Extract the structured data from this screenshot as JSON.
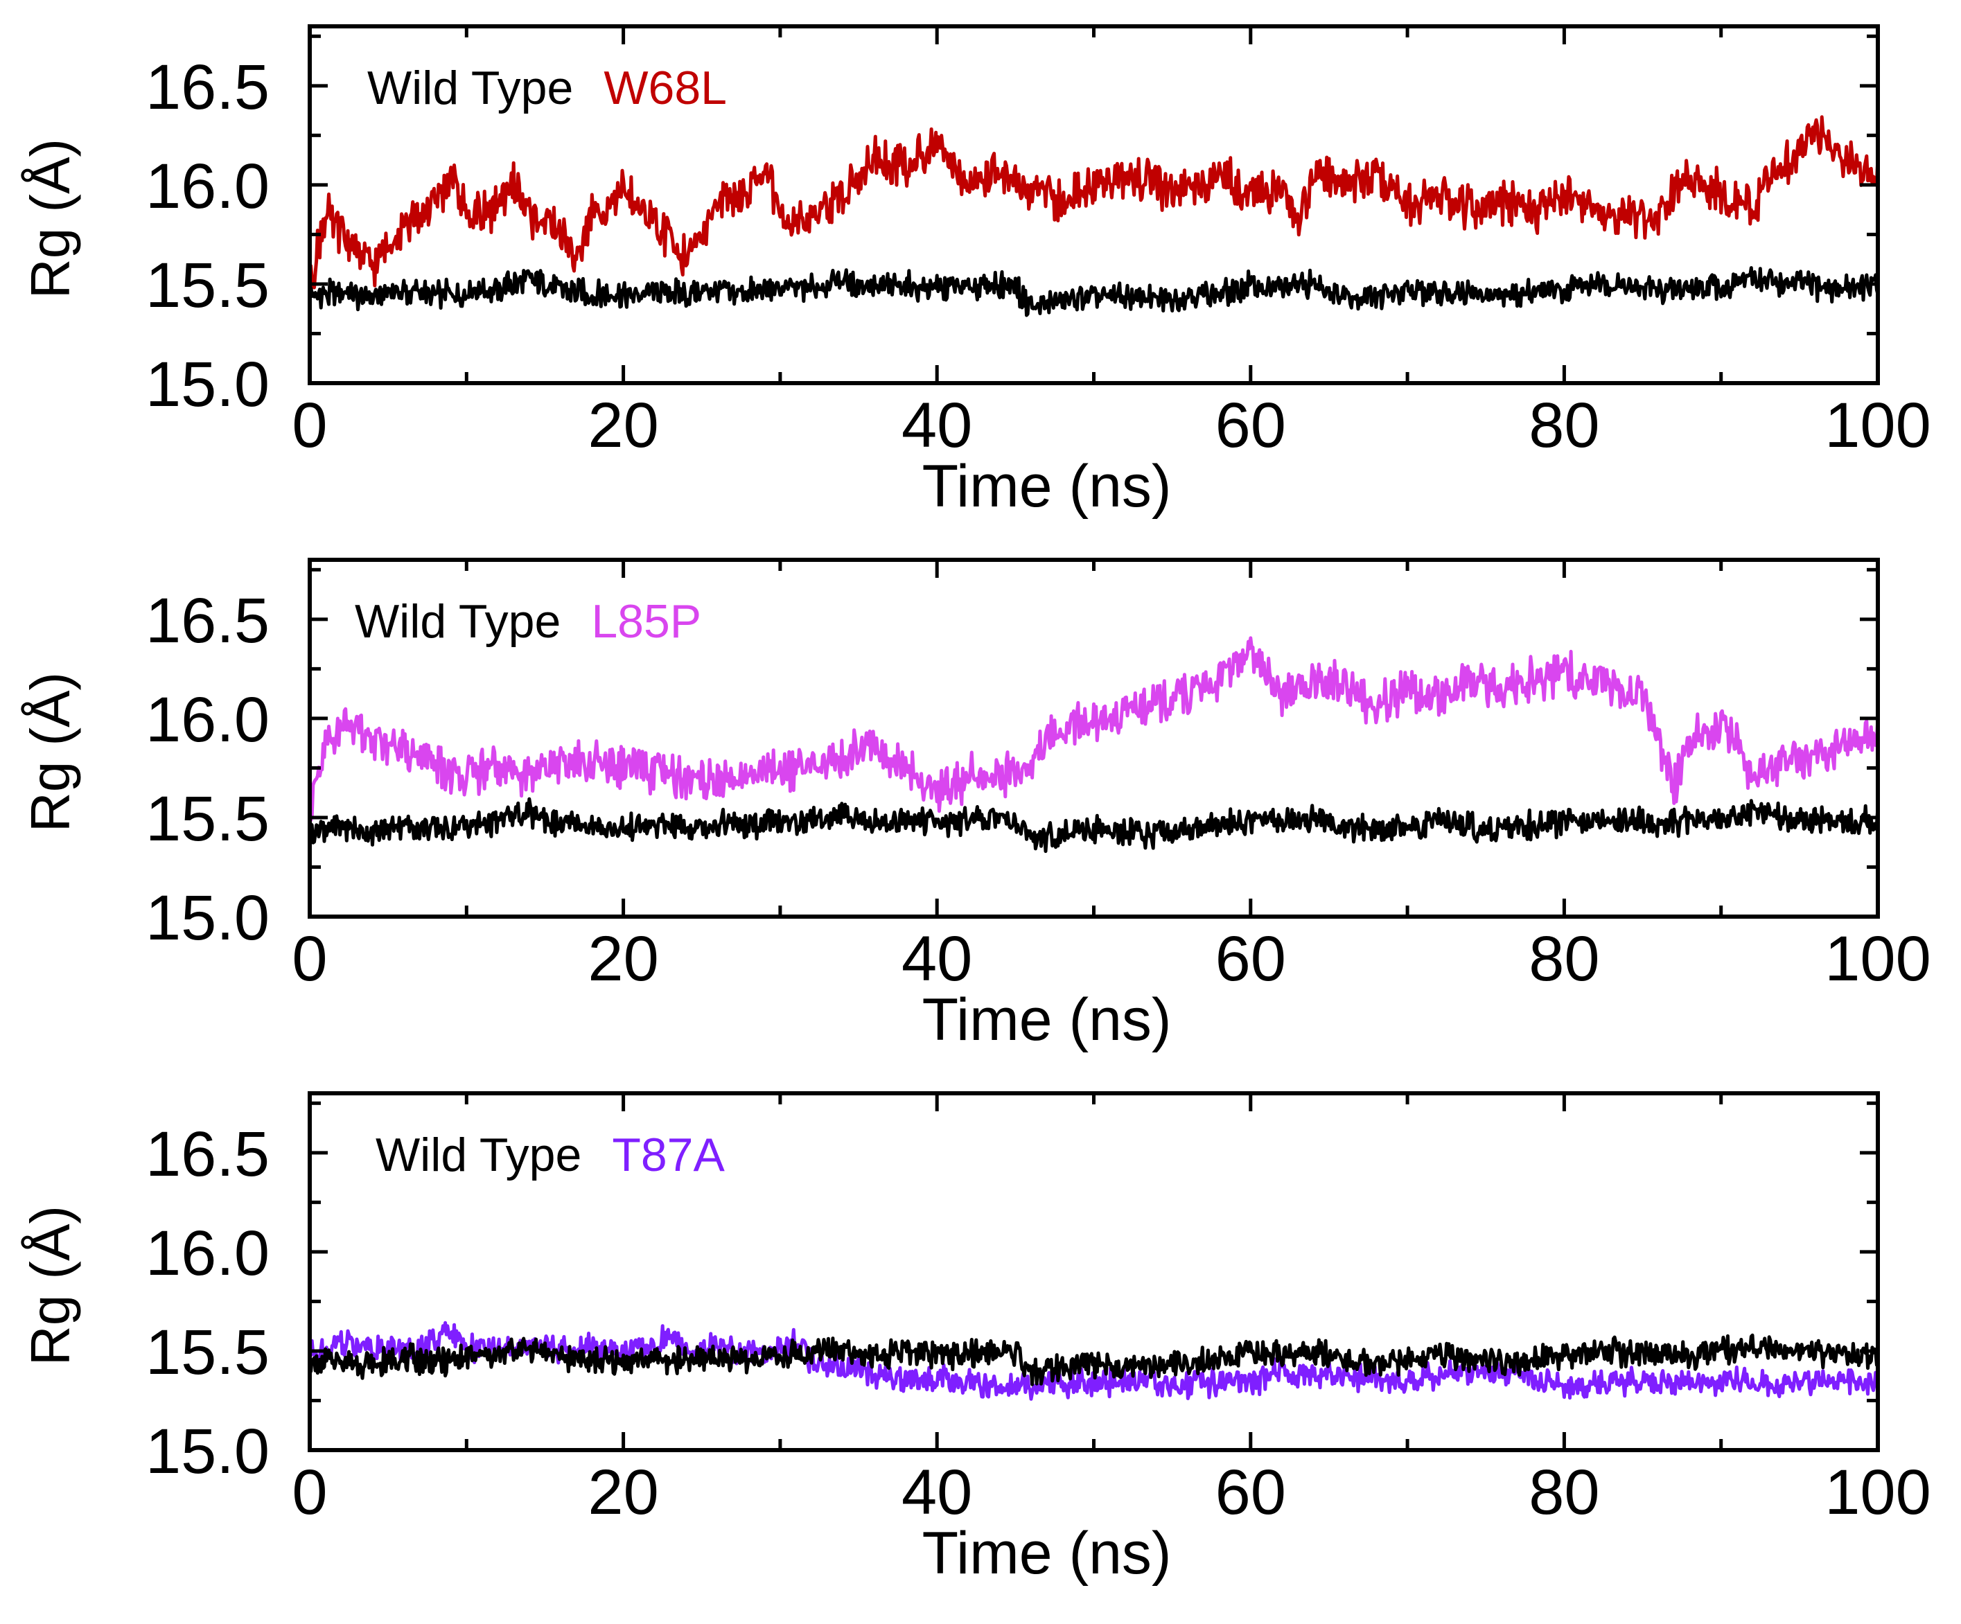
{
  "chart_data": [
    {
      "type": "line",
      "title": "",
      "xlabel": "Time (ns)",
      "ylabel": "Rg (Å)",
      "xlim": [
        0,
        100
      ],
      "ylim": [
        15.0,
        16.8
      ],
      "xticks": [
        "0",
        "20",
        "40",
        "60",
        "80",
        "100"
      ],
      "yticks": [
        "15.0",
        "15.5",
        "16.0",
        "16.5"
      ],
      "legend": [
        "Wild Type",
        "W68L"
      ],
      "series": [
        {
          "name": "Wild Type",
          "color": "#000000",
          "x": [
            0,
            2,
            4,
            6,
            8,
            10,
            12,
            14,
            16,
            18,
            20,
            22,
            24,
            26,
            28,
            30,
            32,
            34,
            36,
            38,
            40,
            42,
            44,
            45,
            46,
            48,
            50,
            52,
            54,
            56,
            58,
            60,
            62,
            64,
            66,
            68,
            70,
            72,
            74,
            76,
            78,
            80,
            82,
            84,
            86,
            88,
            90,
            92,
            94,
            96,
            98,
            100
          ],
          "values": [
            15.44,
            15.45,
            15.43,
            15.47,
            15.44,
            15.46,
            15.48,
            15.52,
            15.47,
            15.45,
            15.44,
            15.46,
            15.45,
            15.47,
            15.46,
            15.47,
            15.49,
            15.52,
            15.48,
            15.49,
            15.48,
            15.48,
            15.5,
            15.48,
            15.38,
            15.42,
            15.44,
            15.43,
            15.42,
            15.44,
            15.45,
            15.5,
            15.48,
            15.5,
            15.45,
            15.44,
            15.46,
            15.47,
            15.46,
            15.44,
            15.46,
            15.48,
            15.5,
            15.49,
            15.47,
            15.48,
            15.49,
            15.53,
            15.5,
            15.49,
            15.48,
            15.48
          ]
        },
        {
          "name": "W68L",
          "color": "#c00000",
          "x": [
            0,
            1,
            2,
            4,
            6,
            8,
            9,
            10,
            12,
            13,
            14,
            16,
            17,
            18,
            20,
            22,
            24,
            26,
            28,
            29,
            30,
            32,
            34,
            36,
            38,
            40,
            42,
            44,
            46,
            48,
            50,
            52,
            54,
            56,
            58,
            60,
            62,
            63,
            64,
            66,
            68,
            70,
            72,
            74,
            76,
            78,
            80,
            82,
            84,
            86,
            88,
            90,
            92,
            94,
            96,
            97,
            98,
            100
          ],
          "values": [
            15.5,
            15.85,
            15.75,
            15.6,
            15.8,
            15.9,
            16.05,
            15.85,
            15.88,
            16.0,
            15.85,
            15.78,
            15.6,
            15.85,
            15.95,
            15.8,
            15.62,
            15.9,
            15.95,
            16.1,
            15.82,
            15.85,
            15.95,
            16.15,
            16.1,
            16.2,
            16.0,
            16.08,
            15.95,
            15.93,
            16.0,
            16.05,
            16.0,
            15.95,
            16.05,
            15.95,
            15.98,
            15.8,
            16.05,
            16.0,
            16.05,
            15.9,
            15.95,
            15.88,
            15.92,
            15.85,
            15.95,
            15.88,
            15.85,
            15.85,
            16.05,
            15.95,
            15.9,
            16.1,
            16.3,
            16.2,
            16.1,
            16.05
          ]
        }
      ]
    },
    {
      "type": "line",
      "title": "",
      "xlabel": "Time (ns)",
      "ylabel": "Rg (Å)",
      "xlim": [
        0,
        100
      ],
      "ylim": [
        15.0,
        16.8
      ],
      "xticks": [
        "0",
        "20",
        "40",
        "60",
        "80",
        "100"
      ],
      "yticks": [
        "15.0",
        "15.5",
        "16.0",
        "16.5"
      ],
      "legend": [
        "Wild Type",
        "L85P"
      ],
      "series": [
        {
          "name": "Wild Type",
          "color": "#000000",
          "x": [
            0,
            2,
            4,
            6,
            8,
            10,
            12,
            14,
            16,
            18,
            20,
            22,
            24,
            26,
            28,
            30,
            32,
            34,
            36,
            38,
            40,
            42,
            44,
            45,
            46,
            48,
            50,
            52,
            54,
            56,
            58,
            60,
            62,
            64,
            66,
            68,
            70,
            72,
            74,
            76,
            78,
            80,
            82,
            84,
            86,
            88,
            90,
            92,
            94,
            96,
            98,
            100
          ],
          "values": [
            15.44,
            15.45,
            15.43,
            15.47,
            15.44,
            15.46,
            15.48,
            15.52,
            15.47,
            15.45,
            15.44,
            15.46,
            15.45,
            15.47,
            15.46,
            15.47,
            15.49,
            15.52,
            15.48,
            15.49,
            15.48,
            15.48,
            15.5,
            15.48,
            15.38,
            15.42,
            15.44,
            15.43,
            15.42,
            15.44,
            15.45,
            15.5,
            15.48,
            15.5,
            15.45,
            15.44,
            15.46,
            15.47,
            15.46,
            15.44,
            15.46,
            15.48,
            15.5,
            15.49,
            15.47,
            15.48,
            15.49,
            15.53,
            15.5,
            15.49,
            15.48,
            15.48
          ]
        },
        {
          "name": "L85P",
          "color": "#d946ef",
          "x": [
            0,
            1,
            2,
            4,
            6,
            8,
            10,
            12,
            14,
            16,
            18,
            20,
            22,
            24,
            26,
            28,
            30,
            32,
            34,
            36,
            38,
            40,
            42,
            44,
            46,
            47,
            48,
            50,
            52,
            54,
            56,
            58,
            60,
            62,
            64,
            66,
            68,
            70,
            72,
            74,
            76,
            78,
            80,
            82,
            84,
            85,
            86,
            87,
            88,
            90,
            91,
            92,
            94,
            96,
            98,
            100
          ],
          "values": [
            15.55,
            15.85,
            15.95,
            15.9,
            15.85,
            15.75,
            15.7,
            15.75,
            15.72,
            15.75,
            15.78,
            15.75,
            15.72,
            15.7,
            15.68,
            15.72,
            15.75,
            15.75,
            15.8,
            15.9,
            15.72,
            15.65,
            15.7,
            15.72,
            15.75,
            15.9,
            15.95,
            15.98,
            16.02,
            16.08,
            16.12,
            16.2,
            16.35,
            16.1,
            16.2,
            16.15,
            16.05,
            16.15,
            16.1,
            16.18,
            16.12,
            16.2,
            16.22,
            16.2,
            16.15,
            16.1,
            15.9,
            15.65,
            15.9,
            15.95,
            15.9,
            15.7,
            15.78,
            15.82,
            15.88,
            15.92
          ]
        }
      ]
    },
    {
      "type": "line",
      "title": "",
      "xlabel": "Time (ns)",
      "ylabel": "Rg (Å)",
      "xlim": [
        0,
        100
      ],
      "ylim": [
        15.0,
        16.8
      ],
      "xticks": [
        "0",
        "20",
        "40",
        "60",
        "80",
        "100"
      ],
      "yticks": [
        "15.0",
        "15.5",
        "16.0",
        "16.5"
      ],
      "legend": [
        "Wild Type",
        "T87A"
      ],
      "series": [
        {
          "name": "Wild Type",
          "color": "#000000",
          "x": [
            0,
            2,
            4,
            6,
            8,
            10,
            12,
            14,
            16,
            18,
            20,
            22,
            24,
            26,
            28,
            30,
            32,
            34,
            36,
            38,
            40,
            42,
            44,
            45,
            46,
            48,
            50,
            52,
            54,
            56,
            58,
            60,
            62,
            64,
            66,
            68,
            70,
            72,
            74,
            76,
            78,
            80,
            82,
            84,
            86,
            88,
            90,
            92,
            94,
            96,
            98,
            100
          ],
          "values": [
            15.44,
            15.45,
            15.43,
            15.47,
            15.44,
            15.46,
            15.48,
            15.52,
            15.47,
            15.45,
            15.44,
            15.46,
            15.45,
            15.47,
            15.46,
            15.47,
            15.49,
            15.52,
            15.48,
            15.49,
            15.48,
            15.48,
            15.5,
            15.48,
            15.38,
            15.42,
            15.44,
            15.43,
            15.42,
            15.44,
            15.45,
            15.5,
            15.48,
            15.5,
            15.45,
            15.44,
            15.46,
            15.47,
            15.46,
            15.44,
            15.46,
            15.48,
            15.5,
            15.49,
            15.47,
            15.48,
            15.49,
            15.53,
            15.5,
            15.49,
            15.48,
            15.48
          ]
        },
        {
          "name": "T87A",
          "color": "#7f1fff",
          "x": [
            0,
            2,
            4,
            6,
            8,
            9,
            10,
            12,
            14,
            16,
            18,
            20,
            22,
            23,
            24,
            26,
            28,
            30,
            31,
            32,
            34,
            36,
            38,
            40,
            42,
            44,
            46,
            48,
            50,
            52,
            54,
            56,
            58,
            60,
            62,
            64,
            66,
            68,
            70,
            72,
            74,
            76,
            78,
            80,
            82,
            84,
            86,
            88,
            90,
            92,
            94,
            96,
            98,
            100
          ],
          "values": [
            15.48,
            15.55,
            15.52,
            15.5,
            15.55,
            15.62,
            15.52,
            15.5,
            15.52,
            15.5,
            15.52,
            15.5,
            15.52,
            15.6,
            15.5,
            15.52,
            15.48,
            15.5,
            15.55,
            15.45,
            15.42,
            15.38,
            15.35,
            15.36,
            15.34,
            15.32,
            15.32,
            15.34,
            15.33,
            15.35,
            15.34,
            15.33,
            15.35,
            15.34,
            15.4,
            15.38,
            15.37,
            15.36,
            15.35,
            15.38,
            15.4,
            15.38,
            15.36,
            15.32,
            15.33,
            15.34,
            15.33,
            15.35,
            15.34,
            15.35,
            15.33,
            15.34,
            15.35,
            15.34
          ]
        }
      ]
    }
  ]
}
